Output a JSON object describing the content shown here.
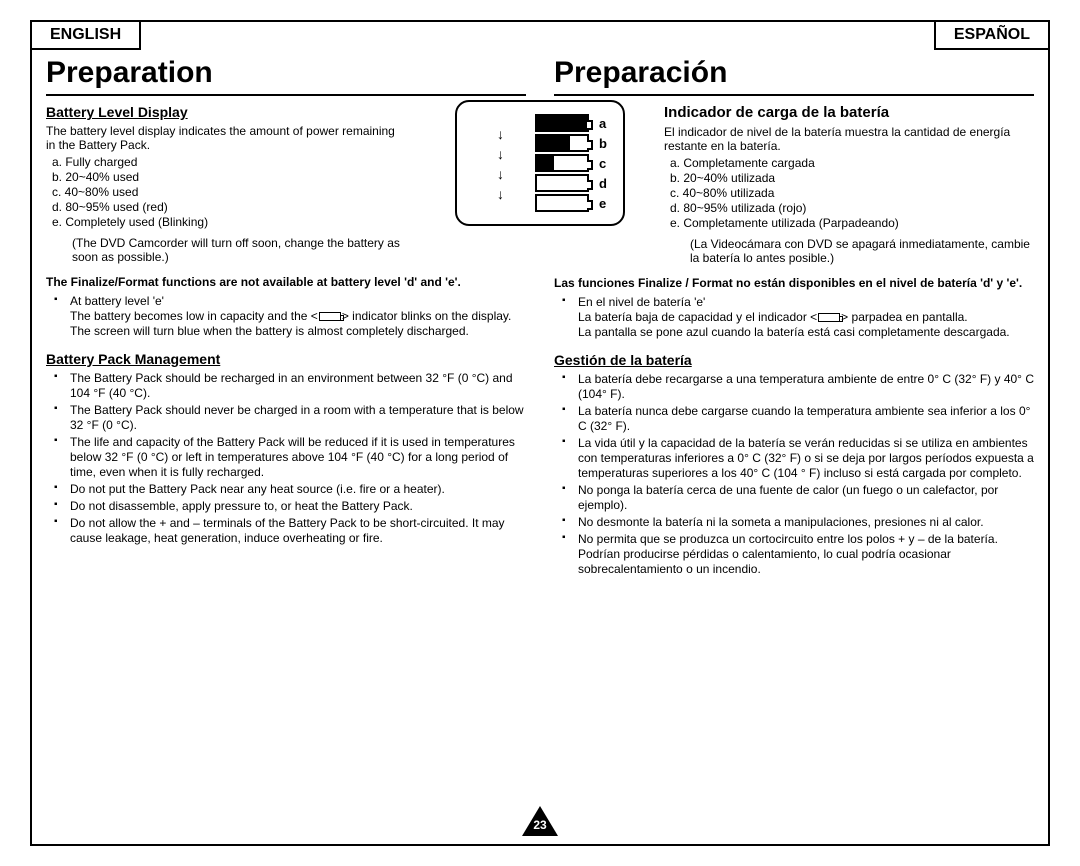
{
  "lang": {
    "en": "ENGLISH",
    "es": "ESPAÑOL"
  },
  "page_number": "23",
  "en": {
    "title": "Preparation",
    "s1_heading": "Battery Level Display",
    "s1_intro": "The battery level display indicates the amount of power remaining in the Battery Pack.",
    "levels": {
      "a": "a.   Fully charged",
      "b": "b.   20~40% used",
      "c": "c.   40~80% used",
      "d": "d.   80~95% used (red)",
      "e": "e.   Completely used (Blinking)"
    },
    "paren": "(The DVD Camcorder will turn off soon, change the battery as soon as possible.)",
    "note": "The Finalize/Format functions are not available at battery level 'd' and 'e'.",
    "bullet_lead": "At battery level 'e'",
    "bullet_l1": "The battery becomes low in capacity and the <",
    "bullet_l1b": "> indicator blinks on the display.",
    "bullet_l2": "The screen will turn blue when the battery is almost completely discharged.",
    "s2_heading": "Battery Pack Management",
    "mgmt": [
      "The Battery Pack should be recharged in an environment between 32 °F (0 °C) and 104 °F (40 °C).",
      "The Battery Pack should never be charged in a room with a temperature that is below 32 °F (0 °C).",
      "The life and capacity of the Battery Pack will be reduced if it is used in temperatures below 32 °F (0 °C) or left in temperatures above 104 °F (40 °C) for a long period of time, even when it is fully recharged.",
      "Do not put the Battery Pack near any heat source (i.e. fire or a heater).",
      "Do not disassemble, apply pressure to, or heat the Battery Pack.",
      "Do not allow the + and – terminals of the Battery Pack to be short-circuited. It may cause leakage, heat generation, induce overheating or fire."
    ]
  },
  "es": {
    "title": "Preparación",
    "s1_heading": "Indicador de carga de la batería",
    "s1_intro": "El indicador de nivel de la batería muestra la cantidad de energía restante en la batería.",
    "levels": {
      "a": "a.   Completamente cargada",
      "b": "b.   20~40% utilizada",
      "c": "c.   40~80% utilizada",
      "d": "d.   80~95% utilizada (rojo)",
      "e": "e.   Completamente utilizada (Parpadeando)"
    },
    "paren": "(La Videocámara con DVD se apagará inmediatamente, cambie la batería lo antes posible.)",
    "note": "Las funciones Finalize / Format no están disponibles en el nivel de batería 'd' y 'e'.",
    "bullet_lead": "En el nivel de batería 'e'",
    "bullet_l1": "La batería baja de capacidad y el indicador <",
    "bullet_l1b": "> parpadea en pantalla.",
    "bullet_l2": "La pantalla se pone azul cuando la batería está casi completamente descargada.",
    "s2_heading": "Gestión de la batería",
    "mgmt": [
      "La batería debe recargarse a una temperatura ambiente de entre 0° C (32° F) y 40° C (104° F).",
      "La batería nunca debe cargarse cuando la temperatura ambiente sea inferior a los 0° C (32° F).",
      "La vida útil y la capacidad de la batería se verán reducidas si se utiliza en ambientes con temperaturas inferiores a 0° C (32° F) o si se deja por largos períodos expuesta a temperaturas superiores a los 40° C (104 ° F) incluso si está cargada por completo.",
      "No ponga la batería cerca de una fuente de calor (un fuego o un calefactor, por ejemplo).",
      "No desmonte la batería ni la someta a manipulaciones, presiones ni al calor.",
      "No permita que se produzca un cortocircuito entre los polos + y – de la batería. Podrían producirse pérdidas o calentamiento, lo cual podría ocasionar sobrecalentamiento o un incendio."
    ]
  },
  "diagram_labels": {
    "a": "a",
    "b": "b",
    "c": "c",
    "d": "d",
    "e": "e"
  }
}
